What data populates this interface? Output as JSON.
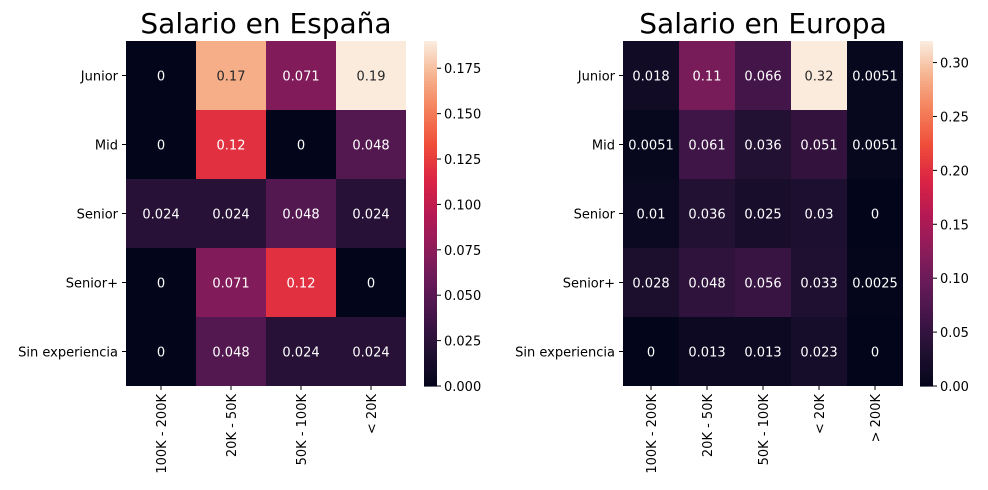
{
  "chart_data": [
    {
      "type": "heatmap",
      "title": "Salario en España",
      "rows": [
        "Junior",
        "Mid",
        "Senior",
        "Senior+",
        "Sin experiencia"
      ],
      "columns": [
        "100K - 200K",
        "20K - 50K",
        "50K - 100K",
        "< 20K"
      ],
      "values": [
        [
          0,
          0.17,
          0.071,
          0.19
        ],
        [
          0,
          0.12,
          0,
          0.048
        ],
        [
          0.024,
          0.024,
          0.048,
          0.024
        ],
        [
          0,
          0.071,
          0.12,
          0
        ],
        [
          0,
          0.048,
          0.024,
          0.024
        ]
      ],
      "cell_labels": [
        [
          "0",
          "0.17",
          "0.071",
          "0.19"
        ],
        [
          "0",
          "0.12",
          "0",
          "0.048"
        ],
        [
          "0.024",
          "0.024",
          "0.048",
          "0.024"
        ],
        [
          "0",
          "0.071",
          "0.12",
          "0"
        ],
        [
          "0",
          "0.048",
          "0.024",
          "0.024"
        ]
      ],
      "vmin": 0,
      "vmax": 0.19,
      "colorbar_ticks": [
        "0.000",
        "0.025",
        "0.050",
        "0.075",
        "0.100",
        "0.125",
        "0.150",
        "0.175"
      ],
      "colormap": "rocket"
    },
    {
      "type": "heatmap",
      "title": "Salario en Europa",
      "rows": [
        "Junior",
        "Mid",
        "Senior",
        "Senior+",
        "Sin experiencia"
      ],
      "columns": [
        "100K - 200K",
        "20K - 50K",
        "50K - 100K",
        "< 20K",
        "> 200K"
      ],
      "values": [
        [
          0.018,
          0.11,
          0.066,
          0.32,
          0.0051
        ],
        [
          0.0051,
          0.061,
          0.036,
          0.051,
          0.0051
        ],
        [
          0.01,
          0.036,
          0.025,
          0.03,
          0
        ],
        [
          0.028,
          0.048,
          0.056,
          0.033,
          0.0025
        ],
        [
          0,
          0.013,
          0.013,
          0.023,
          0
        ]
      ],
      "cell_labels": [
        [
          "0.018",
          "0.11",
          "0.066",
          "0.32",
          "0.0051"
        ],
        [
          "0.0051",
          "0.061",
          "0.036",
          "0.051",
          "0.0051"
        ],
        [
          "0.01",
          "0.036",
          "0.025",
          "0.03",
          "0"
        ],
        [
          "0.028",
          "0.048",
          "0.056",
          "0.033",
          "0.0025"
        ],
        [
          "0",
          "0.013",
          "0.013",
          "0.023",
          "0"
        ]
      ],
      "vmin": 0,
      "vmax": 0.32,
      "colorbar_ticks": [
        "0.00",
        "0.05",
        "0.10",
        "0.15",
        "0.20",
        "0.25",
        "0.30"
      ],
      "colormap": "rocket"
    }
  ]
}
